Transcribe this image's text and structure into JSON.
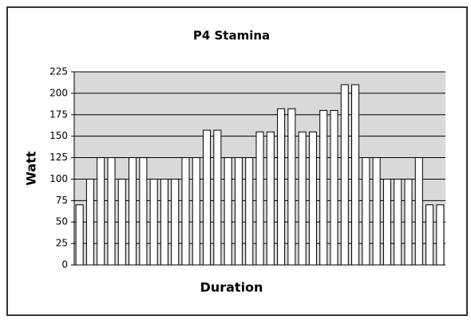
{
  "chart_data": {
    "type": "bar",
    "title": "P4 Stamina",
    "x_label": "Duration",
    "y_label": "Watt",
    "values": [
      70,
      100,
      125,
      125,
      100,
      125,
      125,
      100,
      100,
      100,
      125,
      125,
      157,
      157,
      125,
      125,
      125,
      155,
      155,
      182,
      182,
      155,
      155,
      180,
      180,
      210,
      210,
      125,
      125,
      100,
      100,
      100,
      125,
      70,
      70
    ],
    "color": "#ffffff",
    "ylim": [
      0,
      225
    ],
    "yticks": [
      0,
      25,
      50,
      75,
      100,
      125,
      150,
      175,
      200,
      225
    ],
    "grid": true
  }
}
